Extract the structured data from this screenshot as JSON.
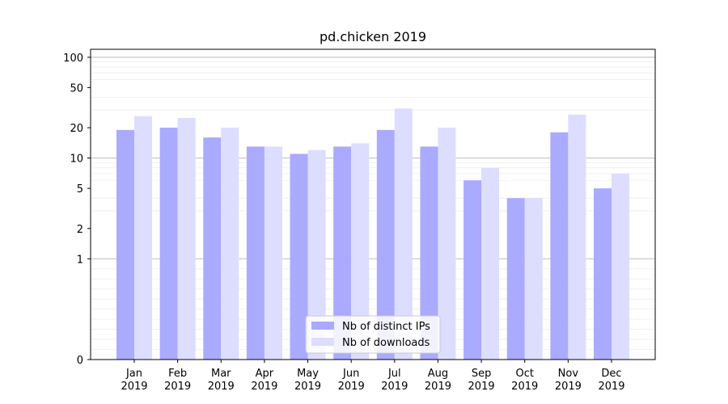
{
  "chart_data": {
    "type": "bar",
    "title": "pd.chicken 2019",
    "xlabel": "",
    "ylabel": "",
    "y_scale": "symlog",
    "ylim": [
      0,
      120
    ],
    "y_ticks": [
      0,
      1,
      2,
      5,
      10,
      20,
      50,
      100
    ],
    "grid": "horizontal",
    "legend_position": "bottom-center",
    "categories": [
      {
        "month": "Jan",
        "year": "2019"
      },
      {
        "month": "Feb",
        "year": "2019"
      },
      {
        "month": "Mar",
        "year": "2019"
      },
      {
        "month": "Apr",
        "year": "2019"
      },
      {
        "month": "May",
        "year": "2019"
      },
      {
        "month": "Jun",
        "year": "2019"
      },
      {
        "month": "Jul",
        "year": "2019"
      },
      {
        "month": "Aug",
        "year": "2019"
      },
      {
        "month": "Sep",
        "year": "2019"
      },
      {
        "month": "Oct",
        "year": "2019"
      },
      {
        "month": "Nov",
        "year": "2019"
      },
      {
        "month": "Dec",
        "year": "2019"
      }
    ],
    "series": [
      {
        "name": "Nb of distinct IPs",
        "color": "#aaaaff",
        "values": [
          19,
          20,
          16,
          13,
          11,
          13,
          19,
          13,
          6,
          4,
          18,
          5
        ]
      },
      {
        "name": "Nb of downloads",
        "color": "#ddddff",
        "values": [
          26,
          25,
          20,
          13,
          12,
          14,
          31,
          20,
          8,
          4,
          27,
          7
        ]
      }
    ]
  }
}
